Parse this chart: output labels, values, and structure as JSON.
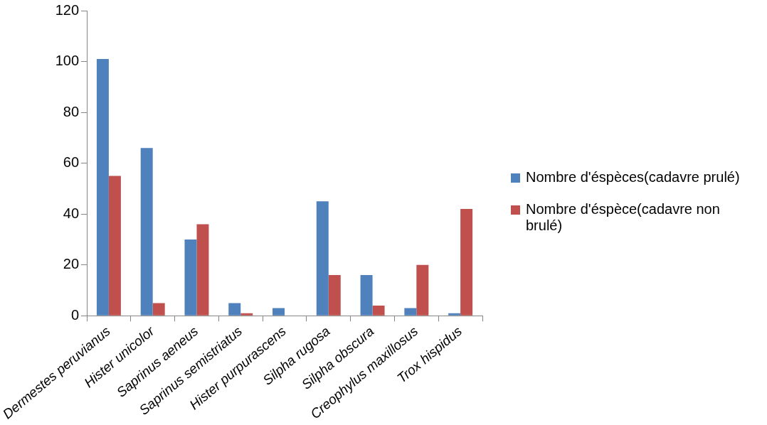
{
  "chart_data": {
    "type": "bar",
    "categories": [
      "Dermestes peruvianus",
      "Hister unicolor",
      "Saprinus aeneus",
      "Saprinus semistriatus",
      "Hister purpurascens",
      "Silpha rugosa",
      "Silpha obscura",
      "Creophylus maxillosus",
      "Trox hispidus"
    ],
    "series": [
      {
        "name": "Nombre d'éspèces(cadavre prulé)",
        "color": "#4f81bd",
        "values": [
          101,
          66,
          30,
          5,
          3,
          45,
          16,
          3,
          1
        ]
      },
      {
        "name": "Nombre d'éspèce(cadavre non brulé)",
        "color": "#c0504d",
        "values": [
          55,
          5,
          36,
          1,
          0,
          16,
          4,
          20,
          42
        ]
      }
    ],
    "ylim": [
      0,
      120
    ],
    "yticks": [
      0,
      20,
      40,
      60,
      80,
      100,
      120
    ],
    "grid": false,
    "legend": "right"
  }
}
